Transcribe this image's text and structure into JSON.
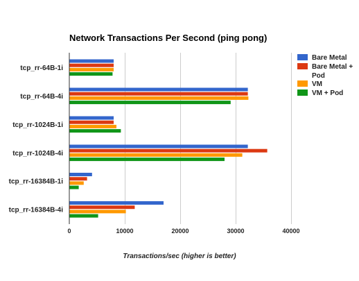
{
  "chart_data": {
    "type": "bar",
    "orientation": "horizontal",
    "title": "Network Transactions Per Second (ping pong)",
    "xlabel": "Transactions/sec (higher is better)",
    "ylabel": "",
    "xlim": [
      0,
      40000
    ],
    "x_ticks": [
      0,
      10000,
      20000,
      30000,
      40000
    ],
    "x_tick_labels": [
      "0",
      "10000",
      "20000",
      "30000",
      "40000"
    ],
    "grid": true,
    "legend_position": "right",
    "categories": [
      "tcp_rr-64B-1i",
      "tcp_rr-64B-4i",
      "tcp_rr-1024B-1i",
      "tcp_rr-1024B-4i",
      "tcp_rr-16384B-1i",
      "tcp_rr-16384B-4i"
    ],
    "series": [
      {
        "name": "Bare Metal",
        "color": "#3366cc",
        "values": [
          8000,
          32200,
          8000,
          32200,
          4100,
          17000
        ]
      },
      {
        "name": "Bare Metal + Pod",
        "legend_lines": [
          "Bare Metal +",
          "Pod"
        ],
        "color": "#dc3912",
        "values": [
          8000,
          32200,
          8000,
          35700,
          3200,
          11800
        ]
      },
      {
        "name": "VM",
        "color": "#ff9900",
        "values": [
          8000,
          32300,
          8500,
          31200,
          2600,
          10200
        ]
      },
      {
        "name": "VM + Pod",
        "color": "#109618",
        "values": [
          7800,
          29100,
          9300,
          28000,
          1700,
          5200
        ]
      }
    ]
  }
}
